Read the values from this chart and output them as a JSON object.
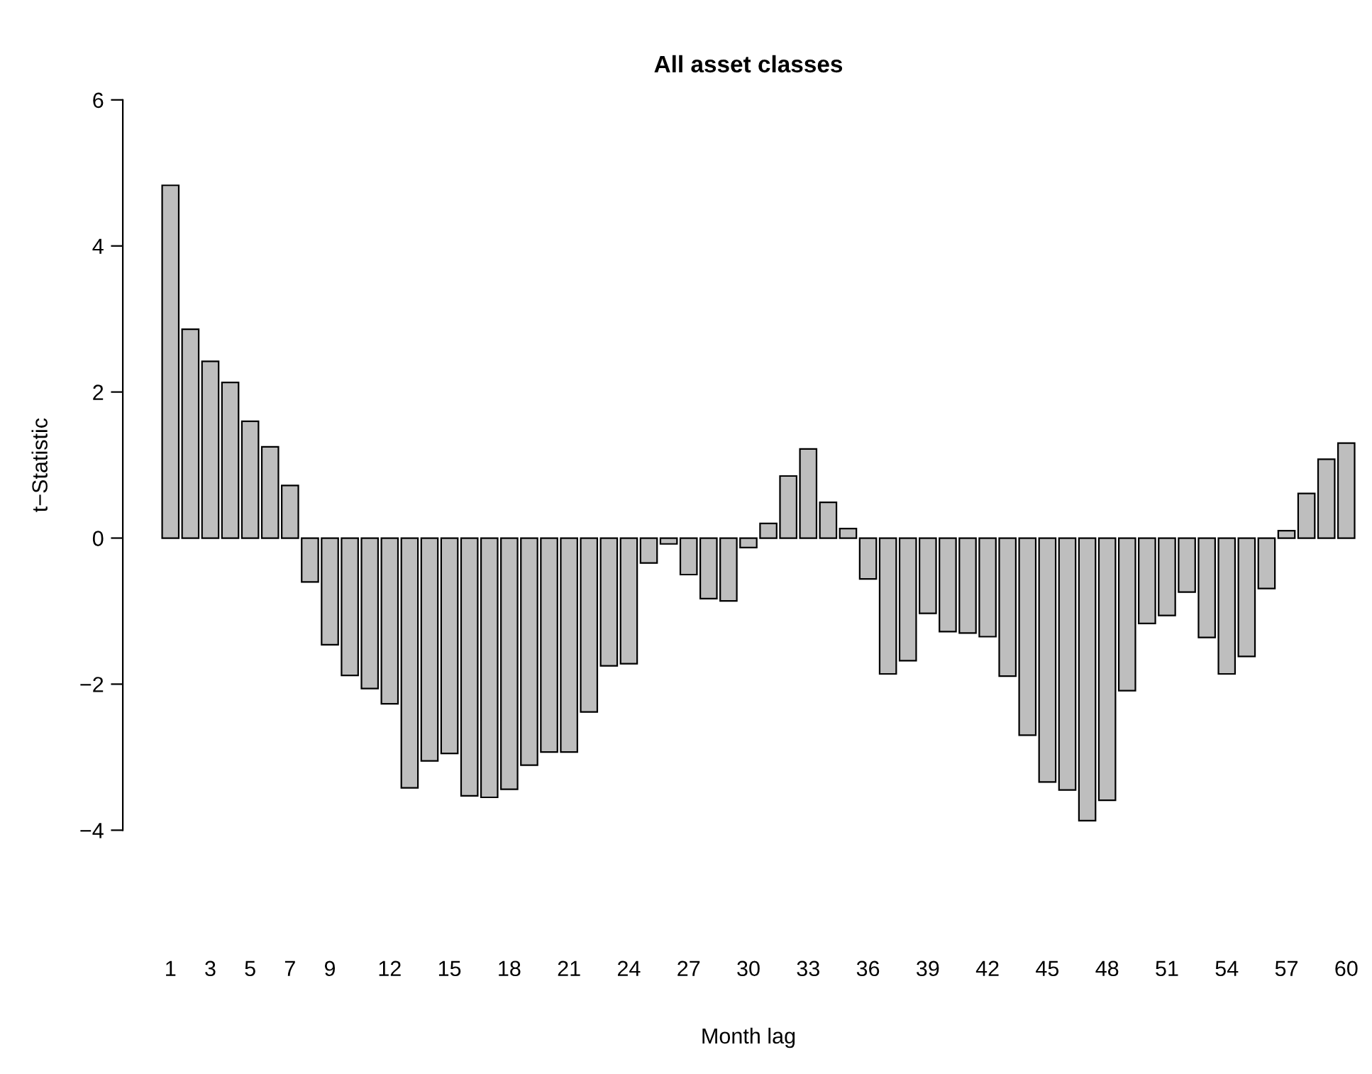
{
  "chart_data": {
    "type": "bar",
    "title": "All asset classes",
    "xlabel": "Month lag",
    "ylabel": "t−Statistic",
    "categories": [
      "1",
      null,
      "3",
      null,
      "5",
      null,
      "7",
      null,
      "9",
      null,
      null,
      "12",
      null,
      null,
      "15",
      null,
      null,
      "18",
      null,
      null,
      "21",
      null,
      null,
      "24",
      null,
      null,
      "27",
      null,
      null,
      "30",
      null,
      null,
      "33",
      null,
      null,
      "36",
      null,
      null,
      "39",
      null,
      null,
      "42",
      null,
      null,
      "45",
      null,
      null,
      "48",
      null,
      null,
      "51",
      null,
      null,
      "54",
      null,
      null,
      "57",
      null,
      null,
      "60"
    ],
    "values": [
      4.83,
      2.86,
      2.42,
      2.13,
      1.6,
      1.25,
      0.72,
      -0.6,
      -1.46,
      -1.88,
      -2.06,
      -2.27,
      -3.42,
      -3.05,
      -2.95,
      -3.53,
      -3.55,
      -3.44,
      -3.11,
      -2.93,
      -2.93,
      -2.38,
      -1.75,
      -1.72,
      -0.34,
      -0.08,
      -0.5,
      -0.83,
      -0.86,
      -0.13,
      0.2,
      0.85,
      1.22,
      0.49,
      0.13,
      -0.56,
      -1.86,
      -1.68,
      -1.03,
      -1.28,
      -1.3,
      -1.35,
      -1.89,
      -2.7,
      -3.34,
      -3.45,
      -3.87,
      -3.59,
      -2.09,
      -1.17,
      -1.06,
      -0.74,
      -1.36,
      -1.86,
      -1.62,
      -0.69,
      0.1,
      0.61,
      1.08,
      1.3
    ],
    "color": "#bebebe",
    "ylim": [
      -4,
      6
    ],
    "yticks": [
      -4,
      -2,
      0,
      2,
      4,
      6
    ],
    "grid": false
  }
}
